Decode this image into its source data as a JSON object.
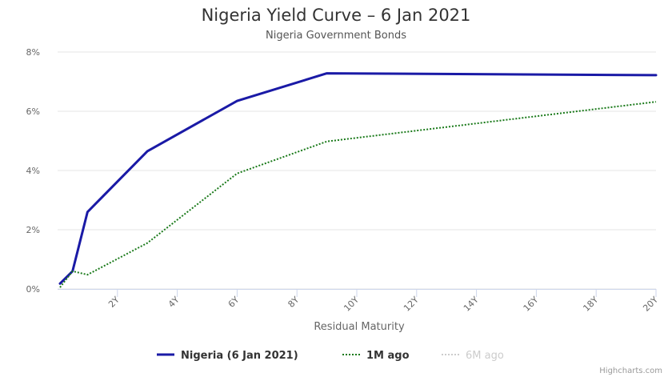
{
  "chart_data": {
    "type": "line",
    "title": "Nigeria Yield Curve – 6 Jan 2021",
    "subtitle": "Nigeria Government Bonds",
    "xlabel": "Residual Maturity",
    "ylabel": "",
    "xlim": [
      0,
      20
    ],
    "ylim": [
      0,
      8
    ],
    "x_ticks": [
      {
        "value": 2,
        "label": "2Y"
      },
      {
        "value": 4,
        "label": "4Y"
      },
      {
        "value": 6,
        "label": "6Y"
      },
      {
        "value": 8,
        "label": "8Y"
      },
      {
        "value": 10,
        "label": "10Y"
      },
      {
        "value": 12,
        "label": "12Y"
      },
      {
        "value": 14,
        "label": "14Y"
      },
      {
        "value": 16,
        "label": "16Y"
      },
      {
        "value": 18,
        "label": "18Y"
      },
      {
        "value": 20,
        "label": "20Y"
      }
    ],
    "y_ticks": [
      {
        "value": 0,
        "label": "0%"
      },
      {
        "value": 2,
        "label": "2%"
      },
      {
        "value": 4,
        "label": "4%"
      },
      {
        "value": 6,
        "label": "6%"
      },
      {
        "value": 8,
        "label": "8%"
      }
    ],
    "grid": "horizontal",
    "legend_position": "bottom-center",
    "series": [
      {
        "name": "Nigeria (6 Jan 2021)",
        "color": "#1a1aa6",
        "style": "solid",
        "visible": true,
        "points": [
          [
            0.08,
            0.18
          ],
          [
            0.5,
            0.6
          ],
          [
            1.0,
            2.6
          ],
          [
            3.0,
            4.65
          ],
          [
            6.0,
            6.35
          ],
          [
            9.0,
            7.28
          ],
          [
            20.0,
            7.22
          ]
        ]
      },
      {
        "name": "1M ago",
        "color": "#1a7a1a",
        "style": "dotted",
        "visible": true,
        "points": [
          [
            0.08,
            0.05
          ],
          [
            0.5,
            0.6
          ],
          [
            1.0,
            0.48
          ],
          [
            3.0,
            1.55
          ],
          [
            6.0,
            3.9
          ],
          [
            9.0,
            4.98
          ],
          [
            20.0,
            6.32
          ]
        ]
      },
      {
        "name": "6M ago",
        "color": "#bbbbbb",
        "style": "dotted",
        "visible": false,
        "points": []
      }
    ],
    "credit": "Highcharts.com"
  }
}
